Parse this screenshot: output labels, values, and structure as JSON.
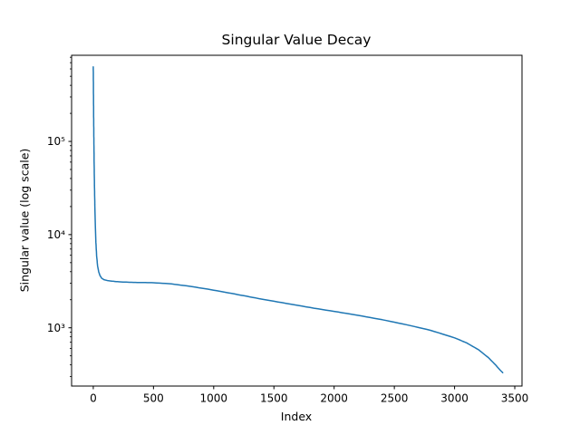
{
  "chart_data": {
    "type": "line",
    "title": "Singular Value Decay",
    "xlabel": "Index",
    "ylabel": "Singular value (log scale)",
    "y_scale": "log",
    "grid": false,
    "legend": "none",
    "background": "#ffffff",
    "line_color": "#1f77b4",
    "line_width": 1.5,
    "xlim": [
      -180,
      3560
    ],
    "ylim": [
      237,
      840000
    ],
    "x_ticks": [
      0,
      500,
      1000,
      1500,
      2000,
      2500,
      3000,
      3500
    ],
    "y_ticks": [
      {
        "value": 1000,
        "label": "10³"
      },
      {
        "value": 10000,
        "label": "10⁴"
      },
      {
        "value": 100000,
        "label": "10⁵"
      }
    ],
    "points": [
      [
        0,
        630000
      ],
      [
        1,
        430000
      ],
      [
        2,
        290000
      ],
      [
        3,
        195000
      ],
      [
        4,
        140000
      ],
      [
        5,
        103000
      ],
      [
        7,
        62000
      ],
      [
        10,
        34000
      ],
      [
        13,
        21000
      ],
      [
        17,
        12500
      ],
      [
        22,
        8200
      ],
      [
        28,
        5900
      ],
      [
        36,
        4600
      ],
      [
        45,
        4000
      ],
      [
        55,
        3650
      ],
      [
        70,
        3400
      ],
      [
        90,
        3280
      ],
      [
        120,
        3210
      ],
      [
        160,
        3160
      ],
      [
        220,
        3110
      ],
      [
        300,
        3080
      ],
      [
        400,
        3060
      ],
      [
        500,
        3045
      ],
      [
        650,
        2960
      ],
      [
        800,
        2790
      ],
      [
        950,
        2600
      ],
      [
        1100,
        2400
      ],
      [
        1250,
        2210
      ],
      [
        1400,
        2030
      ],
      [
        1600,
        1830
      ],
      [
        1800,
        1650
      ],
      [
        2000,
        1500
      ],
      [
        2200,
        1360
      ],
      [
        2400,
        1220
      ],
      [
        2600,
        1080
      ],
      [
        2800,
        940
      ],
      [
        3000,
        780
      ],
      [
        3100,
        690
      ],
      [
        3200,
        580
      ],
      [
        3280,
        480
      ],
      [
        3340,
        400
      ],
      [
        3380,
        350
      ],
      [
        3400,
        330
      ]
    ]
  }
}
